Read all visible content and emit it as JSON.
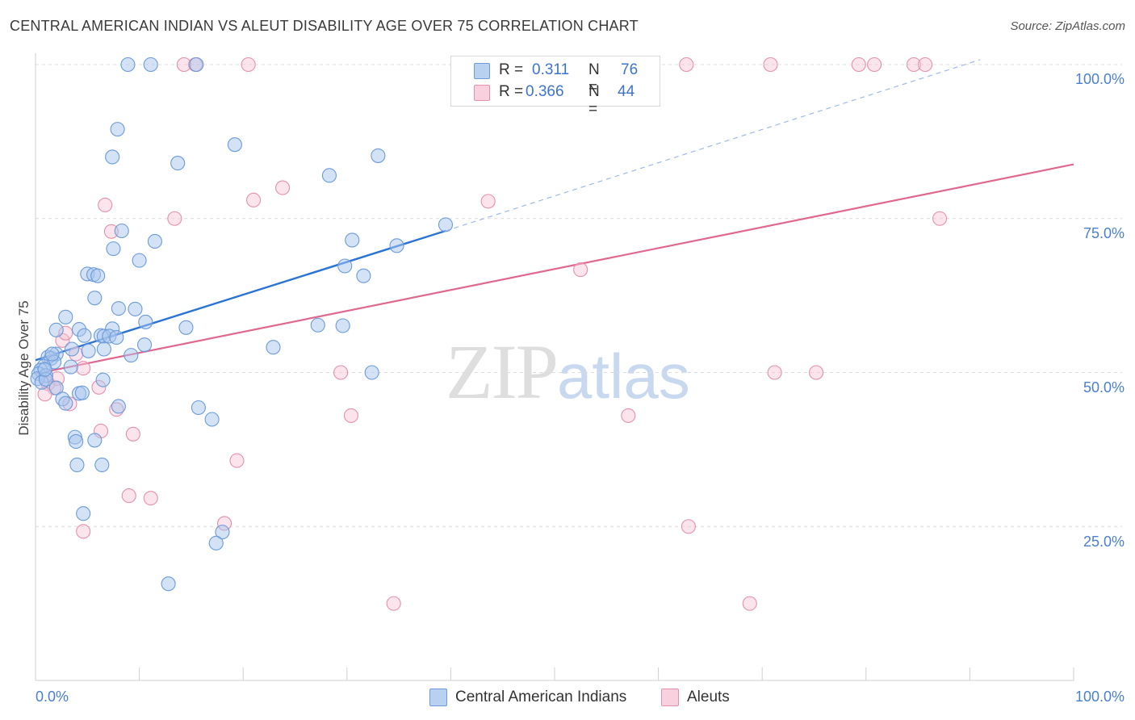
{
  "header": {
    "title": "CENTRAL AMERICAN INDIAN VS ALEUT DISABILITY AGE OVER 75 CORRELATION CHART",
    "source": "Source: ZipAtlas.com"
  },
  "watermark": {
    "zip": "ZIP",
    "atlas": "atlas"
  },
  "legend": {
    "rows": [
      {
        "r_label": "R =",
        "r_value": "0.311",
        "n_label": "N =",
        "n_value": "76"
      },
      {
        "r_label": "R =",
        "r_value": "0.366",
        "n_label": "N =",
        "n_value": "44"
      }
    ]
  },
  "bottom_legend": {
    "series1": "Central American Indians",
    "series2": "Aleuts"
  },
  "colors": {
    "blue_fill": "#a9c6ee",
    "blue_stroke": "#6b9bd9",
    "blue_line": "#2b74d4",
    "pink_fill": "#f6c3d3",
    "pink_stroke": "#e590ad",
    "pink_line": "#e0688f",
    "grid": "#dcdcdc",
    "tick_text": "#4a80d1"
  },
  "chart_data": {
    "type": "scatter",
    "title": "CENTRAL AMERICAN INDIAN VS ALEUT DISABILITY AGE OVER 75 CORRELATION CHART",
    "xlabel": "",
    "ylabel": "Disability Age Over 75",
    "xlim": [
      0,
      100
    ],
    "ylim": [
      0,
      104
    ],
    "x_tick_labels": [
      "0.0%",
      "100.0%"
    ],
    "y_tick_labels": [
      "25.0%",
      "50.0%",
      "75.0%",
      "100.0%"
    ],
    "y_ticks": [
      25,
      50,
      75,
      100
    ],
    "grid": true,
    "legend_position": "top-center",
    "series": [
      {
        "name": "Central American Indians",
        "R": 0.311,
        "N": 76,
        "trend": {
          "x_start": 0.0,
          "y_start": 52.0,
          "x_solid_end": 39.5,
          "y_solid_end": 73.0,
          "x_dashed_end": 91.0,
          "y_dashed_end": 100.8
        },
        "points": [
          [
            8.9,
            100.0
          ],
          [
            11.1,
            100.0
          ],
          [
            15.5,
            100.0
          ],
          [
            7.9,
            89.5
          ],
          [
            19.2,
            87.0
          ],
          [
            7.4,
            85.0
          ],
          [
            13.7,
            84.0
          ],
          [
            28.3,
            82.0
          ],
          [
            33.0,
            85.2
          ],
          [
            8.3,
            73.0
          ],
          [
            11.5,
            71.3
          ],
          [
            7.5,
            70.1
          ],
          [
            10.0,
            68.2
          ],
          [
            39.5,
            74.0
          ],
          [
            30.5,
            71.5
          ],
          [
            34.8,
            70.6
          ],
          [
            29.8,
            67.3
          ],
          [
            31.6,
            65.7
          ],
          [
            5.0,
            66.0
          ],
          [
            5.6,
            65.9
          ],
          [
            6.0,
            65.7
          ],
          [
            5.7,
            62.1
          ],
          [
            8.0,
            60.4
          ],
          [
            9.6,
            60.3
          ],
          [
            10.6,
            58.2
          ],
          [
            2.9,
            59.0
          ],
          [
            27.2,
            57.7
          ],
          [
            29.6,
            57.6
          ],
          [
            2.0,
            56.9
          ],
          [
            4.2,
            57.0
          ],
          [
            14.5,
            57.3
          ],
          [
            7.4,
            57.1
          ],
          [
            4.7,
            56.0
          ],
          [
            6.3,
            56.0
          ],
          [
            6.6,
            55.9
          ],
          [
            7.1,
            55.9
          ],
          [
            7.8,
            55.7
          ],
          [
            10.5,
            54.5
          ],
          [
            6.6,
            53.8
          ],
          [
            5.1,
            53.5
          ],
          [
            3.5,
            53.8
          ],
          [
            9.2,
            52.8
          ],
          [
            22.9,
            54.1
          ],
          [
            2.0,
            53.0
          ],
          [
            1.2,
            52.5
          ],
          [
            1.5,
            52.3
          ],
          [
            1.8,
            51.7
          ],
          [
            0.8,
            51.0
          ],
          [
            3.4,
            50.9
          ],
          [
            0.5,
            50.4
          ],
          [
            0.3,
            49.8
          ],
          [
            1.0,
            49.5
          ],
          [
            0.2,
            49.0
          ],
          [
            0.6,
            48.4
          ],
          [
            32.4,
            50.0
          ],
          [
            6.5,
            48.8
          ],
          [
            2.0,
            47.5
          ],
          [
            4.2,
            46.6
          ],
          [
            4.5,
            46.7
          ],
          [
            2.6,
            45.7
          ],
          [
            2.9,
            45.0
          ],
          [
            8.0,
            44.5
          ],
          [
            15.7,
            44.3
          ],
          [
            17.0,
            42.4
          ],
          [
            3.8,
            39.5
          ],
          [
            3.9,
            38.8
          ],
          [
            5.7,
            39.0
          ],
          [
            4.0,
            35.0
          ],
          [
            6.4,
            35.0
          ],
          [
            4.6,
            27.1
          ],
          [
            18.0,
            24.1
          ],
          [
            17.4,
            22.3
          ],
          [
            12.8,
            15.7
          ],
          [
            1.0,
            48.9
          ],
          [
            0.9,
            50.5
          ],
          [
            1.6,
            53.0
          ]
        ]
      },
      {
        "name": "Aleuts",
        "R": 0.366,
        "N": 44,
        "trend": {
          "x_start": 0.0,
          "y_start": 49.8,
          "x_end": 100.0,
          "y_end": 83.8
        },
        "points": [
          [
            14.3,
            100.0
          ],
          [
            15.4,
            100.0
          ],
          [
            20.5,
            100.0
          ],
          [
            47.5,
            100.0
          ],
          [
            62.7,
            100.0
          ],
          [
            70.8,
            100.0
          ],
          [
            79.3,
            100.0
          ],
          [
            80.8,
            100.0
          ],
          [
            84.6,
            100.0
          ],
          [
            85.7,
            100.0
          ],
          [
            23.8,
            80.0
          ],
          [
            21.0,
            78.0
          ],
          [
            43.6,
            77.8
          ],
          [
            6.7,
            77.2
          ],
          [
            13.4,
            75.0
          ],
          [
            87.1,
            75.0
          ],
          [
            7.3,
            72.9
          ],
          [
            52.5,
            66.7
          ],
          [
            2.6,
            55.2
          ],
          [
            2.9,
            56.4
          ],
          [
            3.9,
            53.0
          ],
          [
            4.6,
            50.7
          ],
          [
            2.1,
            49.0
          ],
          [
            1.2,
            48.2
          ],
          [
            1.8,
            47.5
          ],
          [
            0.9,
            46.5
          ],
          [
            3.3,
            44.9
          ],
          [
            6.1,
            47.6
          ],
          [
            7.8,
            44.0
          ],
          [
            29.4,
            50.0
          ],
          [
            71.2,
            50.0
          ],
          [
            75.2,
            50.0
          ],
          [
            30.4,
            43.0
          ],
          [
            57.1,
            43.0
          ],
          [
            6.3,
            40.5
          ],
          [
            9.4,
            40.0
          ],
          [
            19.4,
            35.7
          ],
          [
            9.0,
            30.0
          ],
          [
            11.1,
            29.6
          ],
          [
            18.2,
            25.5
          ],
          [
            4.6,
            24.2
          ],
          [
            62.9,
            25.0
          ],
          [
            34.5,
            12.5
          ],
          [
            68.8,
            12.5
          ]
        ]
      }
    ]
  }
}
